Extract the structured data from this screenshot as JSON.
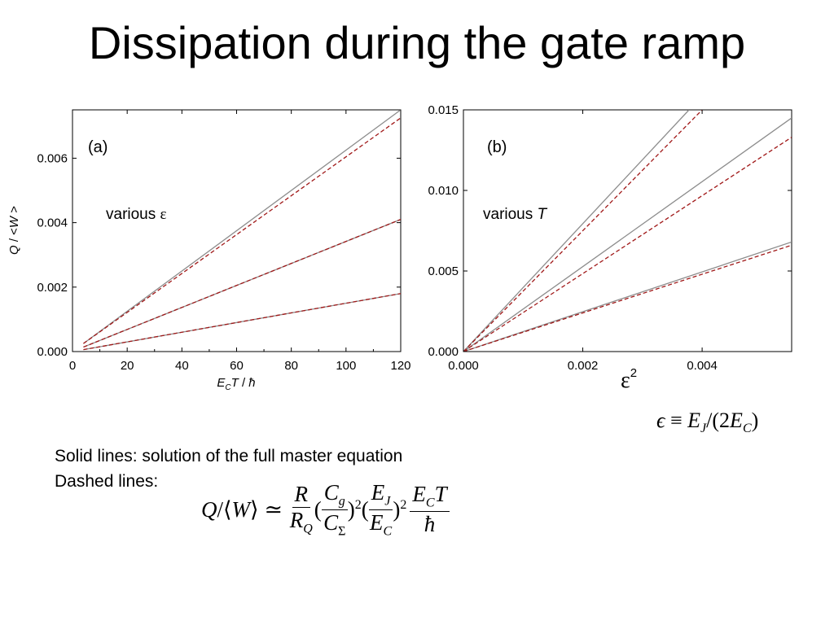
{
  "slide": {
    "title": "Dissipation during the gate ramp",
    "caption_solid": "Solid lines: solution of the full master equation",
    "caption_dashed": "Dashed lines:",
    "epsilon_definition": "ε ≡ E_J/(2E_C)",
    "formula": "Q/⟨W⟩ ≃ (R/R_Q)(C_g/C_Σ)²(E_J/E_C)² E_C T/ħ"
  },
  "chart_data": [
    {
      "type": "line",
      "panel_label": "(a)",
      "annotation": "various ε",
      "xlabel": "E_C T / ħ",
      "ylabel": "Q / <W >",
      "xlim": [
        0,
        120
      ],
      "ylim": [
        0,
        0.0075
      ],
      "xticks": [
        0,
        20,
        40,
        60,
        80,
        100,
        120
      ],
      "xtick_labels": [
        "0",
        "20",
        "40",
        "60",
        "80",
        "100",
        "120"
      ],
      "yticks": [
        0,
        0.002,
        0.004,
        0.006
      ],
      "ytick_labels": [
        "0.000",
        "0.002",
        "0.004",
        "0.006"
      ],
      "grid": false,
      "series": [
        {
          "style": "solid",
          "color": "#8c8c8c",
          "x": [
            4,
            120
          ],
          "y": [
            0.00025,
            0.0075
          ]
        },
        {
          "style": "dashed",
          "color": "#a01818",
          "x": [
            4,
            120
          ],
          "y": [
            0.00025,
            0.00725
          ]
        },
        {
          "style": "solid",
          "color": "#8c8c8c",
          "x": [
            4,
            120
          ],
          "y": [
            0.00014,
            0.0041
          ]
        },
        {
          "style": "dashed",
          "color": "#a01818",
          "x": [
            4,
            120
          ],
          "y": [
            0.00014,
            0.0041
          ]
        },
        {
          "style": "solid",
          "color": "#8c8c8c",
          "x": [
            4,
            120
          ],
          "y": [
            6e-05,
            0.0018
          ]
        },
        {
          "style": "dashed",
          "color": "#a01818",
          "x": [
            4,
            120
          ],
          "y": [
            6e-05,
            0.0018
          ]
        }
      ]
    },
    {
      "type": "line",
      "panel_label": "(b)",
      "annotation": "various T",
      "xlabel": "ε²",
      "ylabel": "",
      "xlim": [
        0,
        0.0055
      ],
      "ylim": [
        0,
        0.015
      ],
      "xticks": [
        0,
        0.002,
        0.004
      ],
      "xtick_labels": [
        "0.000",
        "0.002",
        "0.004"
      ],
      "yticks": [
        0,
        0.005,
        0.01,
        0.015
      ],
      "ytick_labels": [
        "0.000",
        "0.005",
        "0.010",
        "0.015"
      ],
      "grid": false,
      "series": [
        {
          "style": "solid",
          "color": "#8c8c8c",
          "x": [
            0,
            0.00378
          ],
          "y": [
            0,
            0.015
          ]
        },
        {
          "style": "dashed",
          "color": "#a01818",
          "x": [
            0,
            0.004
          ],
          "y": [
            0,
            0.015
          ]
        },
        {
          "style": "solid",
          "color": "#8c8c8c",
          "x": [
            0,
            0.0055
          ],
          "y": [
            0,
            0.0145
          ]
        },
        {
          "style": "dashed",
          "color": "#a01818",
          "x": [
            0,
            0.0055
          ],
          "y": [
            0,
            0.0133
          ]
        },
        {
          "style": "solid",
          "color": "#8c8c8c",
          "x": [
            0,
            0.0055
          ],
          "y": [
            0,
            0.0068
          ]
        },
        {
          "style": "dashed",
          "color": "#a01818",
          "x": [
            0,
            0.0055
          ],
          "y": [
            0,
            0.0066
          ]
        }
      ]
    }
  ]
}
